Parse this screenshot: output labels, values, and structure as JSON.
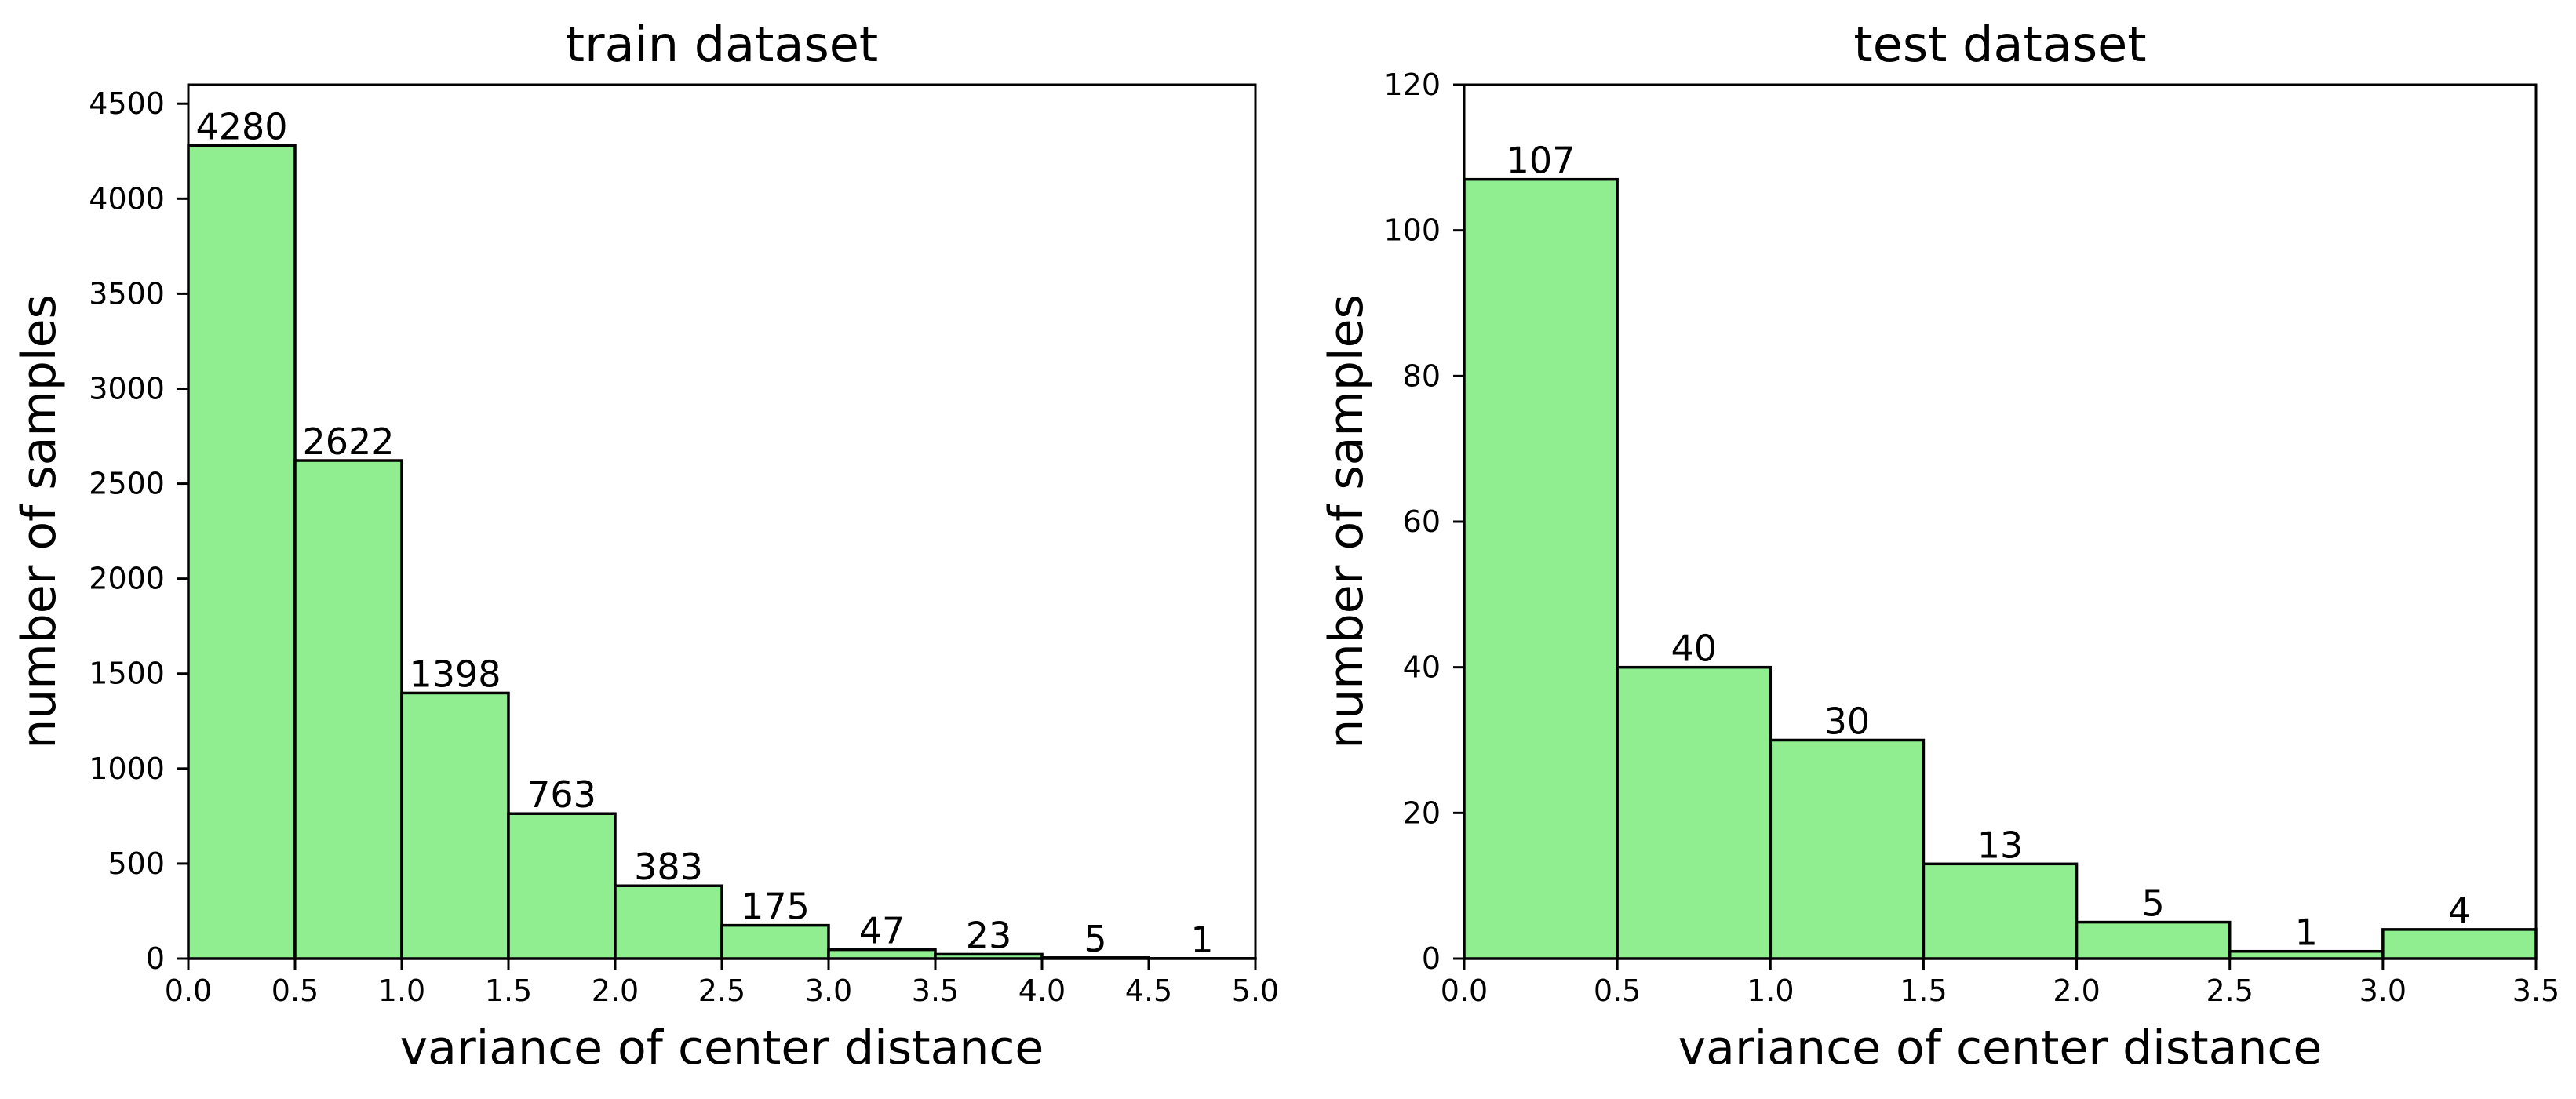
{
  "colors": {
    "bar_fill": "#90ee90",
    "bar_edge": "#000000",
    "axis": "#000000",
    "background": "#ffffff"
  },
  "chart_data": [
    {
      "type": "bar",
      "title": "train dataset",
      "xlabel": "variance of center distance",
      "ylabel": "number of samples",
      "bins": [
        [
          0.0,
          0.5
        ],
        [
          0.5,
          1.0
        ],
        [
          1.0,
          1.5
        ],
        [
          1.5,
          2.0
        ],
        [
          2.0,
          2.5
        ],
        [
          2.5,
          3.0
        ],
        [
          3.0,
          3.5
        ],
        [
          3.5,
          4.0
        ],
        [
          4.0,
          4.5
        ],
        [
          4.5,
          5.0
        ]
      ],
      "values": [
        4280,
        2622,
        1398,
        763,
        383,
        175,
        47,
        23,
        5,
        1
      ],
      "data_labels": [
        "4280",
        "2622",
        "1398",
        "763",
        "383",
        "175",
        "47",
        "23",
        "5",
        "1"
      ],
      "xlim": [
        0.0,
        5.0
      ],
      "ylim": [
        0,
        4600
      ],
      "xticks": [
        0.0,
        0.5,
        1.0,
        1.5,
        2.0,
        2.5,
        3.0,
        3.5,
        4.0,
        4.5,
        5.0
      ],
      "xtick_labels": [
        "0.0",
        "0.5",
        "1.0",
        "1.5",
        "2.0",
        "2.5",
        "3.0",
        "3.5",
        "4.0",
        "4.5",
        "5.0"
      ],
      "yticks": [
        0,
        500,
        1000,
        1500,
        2000,
        2500,
        3000,
        3500,
        4000,
        4500
      ],
      "ytick_labels": [
        "0",
        "500",
        "1000",
        "1500",
        "2000",
        "2500",
        "3000",
        "3500",
        "4000",
        "4500"
      ],
      "grid": false,
      "legend": "none"
    },
    {
      "type": "bar",
      "title": "test dataset",
      "xlabel": "variance of center distance",
      "ylabel": "number of samples",
      "bins": [
        [
          0.0,
          0.5
        ],
        [
          0.5,
          1.0
        ],
        [
          1.0,
          1.5
        ],
        [
          1.5,
          2.0
        ],
        [
          2.0,
          2.5
        ],
        [
          2.5,
          3.0
        ],
        [
          3.0,
          3.5
        ]
      ],
      "values": [
        107,
        40,
        30,
        13,
        5,
        1,
        4
      ],
      "data_labels": [
        "107",
        "40",
        "30",
        "13",
        "5",
        "1",
        "4"
      ],
      "xlim": [
        0.0,
        3.5
      ],
      "ylim": [
        0,
        120
      ],
      "xticks": [
        0.0,
        0.5,
        1.0,
        1.5,
        2.0,
        2.5,
        3.0,
        3.5
      ],
      "xtick_labels": [
        "0.0",
        "0.5",
        "1.0",
        "1.5",
        "2.0",
        "2.5",
        "3.0",
        "3.5"
      ],
      "yticks": [
        0,
        20,
        40,
        60,
        80,
        100,
        120
      ],
      "ytick_labels": [
        "0",
        "20",
        "40",
        "60",
        "80",
        "100",
        "120"
      ],
      "grid": false,
      "legend": "none"
    }
  ]
}
